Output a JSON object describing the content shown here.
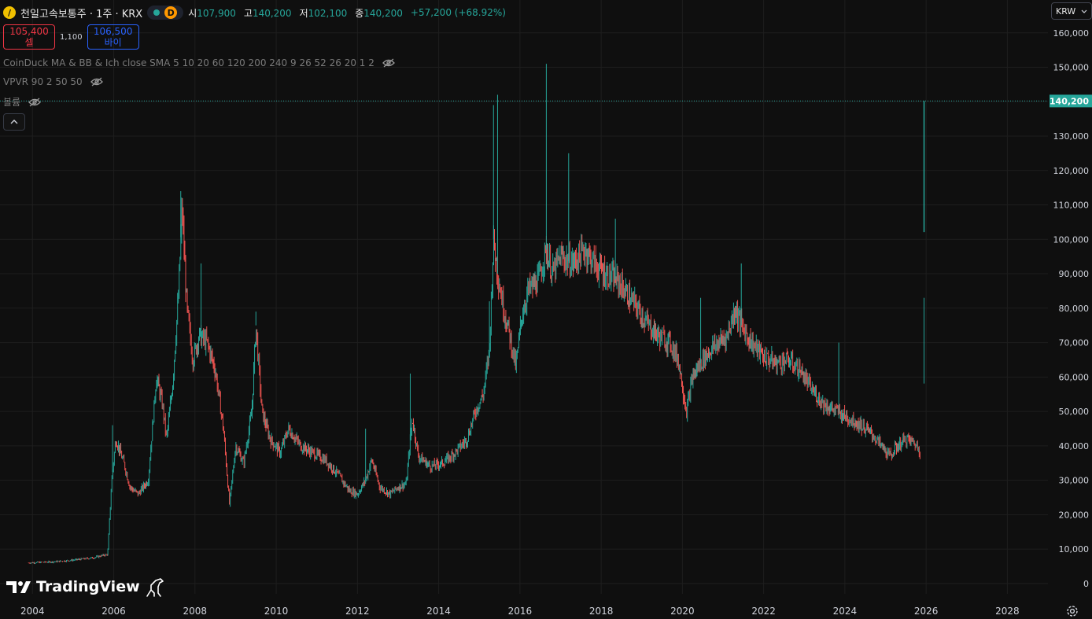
{
  "header": {
    "symbol_title": "천일고속보통주 · 1주 · KRX",
    "logo_glyph": "/",
    "badge": "D",
    "ohlc": [
      {
        "k": "시",
        "v": "107,900"
      },
      {
        "k": "고",
        "v": "140,200"
      },
      {
        "k": "저",
        "v": "102,100"
      },
      {
        "k": "종",
        "v": "140,200"
      }
    ],
    "change": "+57,200 (+68.92%)"
  },
  "trade": {
    "sell_price": "105,400",
    "sell_label": "셀",
    "spread": "1,100",
    "buy_price": "106,500",
    "buy_label": "바이"
  },
  "indicators": [
    "CoinDuck MA & BB & Ich close SMA 5 10 20 60 120 200 240 9 26 52 26 20 1 2",
    "VPVR 90 2 50 50",
    "볼륨"
  ],
  "currency": "KRW",
  "brand": "TradingView",
  "colors": {
    "up": "#26a69a",
    "down": "#ef5350",
    "bg": "#0f0f0f",
    "grid": "#1e1e1e"
  },
  "chart_data": {
    "type": "candlestick",
    "title": "천일고속보통주",
    "xlim": [
      2003.2,
      2029.0
    ],
    "ylim": [
      -3000,
      162000
    ],
    "y_ticks": [
      0,
      10000,
      20000,
      30000,
      40000,
      50000,
      60000,
      70000,
      80000,
      90000,
      100000,
      110000,
      120000,
      130000,
      140000,
      150000,
      160000
    ],
    "y_tick_labels": [
      "0",
      "10,000",
      "20,000",
      "30,000",
      "40,000",
      "50,000",
      "60,000",
      "70,000",
      "80,000",
      "90,000",
      "100,000",
      "110,000",
      "120,000",
      "130,000",
      "140,000",
      "150,000",
      "160,000"
    ],
    "x_ticks": [
      2004,
      2006,
      2008,
      2010,
      2012,
      2014,
      2016,
      2018,
      2020,
      2022,
      2024,
      2026,
      2028
    ],
    "x_tick_labels": [
      "2004",
      "2006",
      "2008",
      "2010",
      "2012",
      "2014",
      "2016",
      "2018",
      "2020",
      "2022",
      "2024",
      "2026",
      "2028"
    ],
    "last_price": 140200,
    "last_price_label": "140,200",
    "price_path": [
      [
        2003.9,
        6000
      ],
      [
        2004.5,
        6300
      ],
      [
        2005.0,
        6800
      ],
      [
        2005.5,
        7500
      ],
      [
        2005.85,
        8500
      ],
      [
        2005.95,
        30000
      ],
      [
        2006.05,
        42000
      ],
      [
        2006.25,
        35000
      ],
      [
        2006.4,
        28000
      ],
      [
        2006.6,
        26000
      ],
      [
        2006.85,
        30000
      ],
      [
        2007.05,
        60000
      ],
      [
        2007.2,
        52000
      ],
      [
        2007.3,
        42000
      ],
      [
        2007.45,
        58000
      ],
      [
        2007.6,
        85000
      ],
      [
        2007.68,
        110000
      ],
      [
        2007.8,
        80000
      ],
      [
        2007.95,
        65000
      ],
      [
        2008.1,
        72000
      ],
      [
        2008.3,
        70000
      ],
      [
        2008.5,
        62000
      ],
      [
        2008.7,
        45000
      ],
      [
        2008.85,
        23000
      ],
      [
        2009.0,
        40000
      ],
      [
        2009.2,
        35000
      ],
      [
        2009.4,
        50000
      ],
      [
        2009.5,
        75000
      ],
      [
        2009.65,
        50000
      ],
      [
        2009.85,
        42000
      ],
      [
        2010.1,
        38000
      ],
      [
        2010.3,
        45000
      ],
      [
        2010.6,
        40000
      ],
      [
        2010.9,
        38000
      ],
      [
        2011.2,
        36000
      ],
      [
        2011.5,
        32000
      ],
      [
        2011.8,
        27000
      ],
      [
        2012.0,
        26000
      ],
      [
        2012.2,
        30000
      ],
      [
        2012.35,
        36000
      ],
      [
        2012.55,
        28000
      ],
      [
        2012.8,
        26000
      ],
      [
        2013.0,
        28000
      ],
      [
        2013.2,
        29000
      ],
      [
        2013.35,
        48000
      ],
      [
        2013.5,
        37000
      ],
      [
        2013.8,
        34000
      ],
      [
        2014.1,
        35000
      ],
      [
        2014.4,
        38000
      ],
      [
        2014.7,
        42000
      ],
      [
        2014.9,
        50000
      ],
      [
        2015.1,
        55000
      ],
      [
        2015.25,
        68000
      ],
      [
        2015.35,
        100000
      ],
      [
        2015.45,
        90000
      ],
      [
        2015.6,
        80000
      ],
      [
        2015.75,
        72000
      ],
      [
        2015.9,
        63000
      ],
      [
        2016.05,
        78000
      ],
      [
        2016.2,
        85000
      ],
      [
        2016.45,
        88000
      ],
      [
        2016.65,
        97000
      ],
      [
        2016.8,
        90000
      ],
      [
        2017.0,
        95000
      ],
      [
        2017.3,
        93000
      ],
      [
        2017.6,
        97000
      ],
      [
        2017.9,
        92000
      ],
      [
        2018.1,
        90000
      ],
      [
        2018.4,
        88000
      ],
      [
        2018.7,
        83000
      ],
      [
        2018.9,
        80000
      ],
      [
        2019.1,
        76000
      ],
      [
        2019.4,
        72000
      ],
      [
        2019.7,
        70000
      ],
      [
        2019.9,
        65000
      ],
      [
        2020.1,
        50000
      ],
      [
        2020.25,
        60000
      ],
      [
        2020.5,
        65000
      ],
      [
        2020.7,
        68000
      ],
      [
        2020.9,
        70000
      ],
      [
        2021.1,
        72000
      ],
      [
        2021.3,
        80000
      ],
      [
        2021.45,
        75000
      ],
      [
        2021.7,
        70000
      ],
      [
        2022.0,
        66000
      ],
      [
        2022.3,
        64000
      ],
      [
        2022.6,
        65000
      ],
      [
        2022.9,
        62000
      ],
      [
        2023.2,
        56000
      ],
      [
        2023.5,
        52000
      ],
      [
        2023.8,
        50000
      ],
      [
        2024.1,
        48000
      ],
      [
        2024.4,
        46000
      ],
      [
        2024.7,
        43000
      ],
      [
        2024.9,
        40000
      ],
      [
        2025.1,
        37000
      ],
      [
        2025.3,
        40000
      ],
      [
        2025.5,
        42000
      ],
      [
        2025.7,
        41000
      ],
      [
        2025.85,
        38500
      ]
    ],
    "spikes": [
      [
        2005.97,
        46000
      ],
      [
        2007.65,
        114000
      ],
      [
        2008.15,
        93000
      ],
      [
        2009.5,
        79000
      ],
      [
        2012.2,
        45000
      ],
      [
        2013.3,
        61000
      ],
      [
        2015.25,
        82000
      ],
      [
        2015.35,
        139000
      ],
      [
        2015.45,
        142000
      ],
      [
        2016.65,
        151000
      ],
      [
        2017.2,
        125000
      ],
      [
        2018.35,
        106000
      ],
      [
        2020.45,
        83000
      ],
      [
        2021.45,
        93000
      ],
      [
        2023.85,
        70000
      ],
      [
        2025.95,
        83000
      ]
    ],
    "last_candle": {
      "x": 2025.95,
      "open": 107900,
      "high": 140200,
      "low": 102100,
      "close": 140200
    }
  }
}
